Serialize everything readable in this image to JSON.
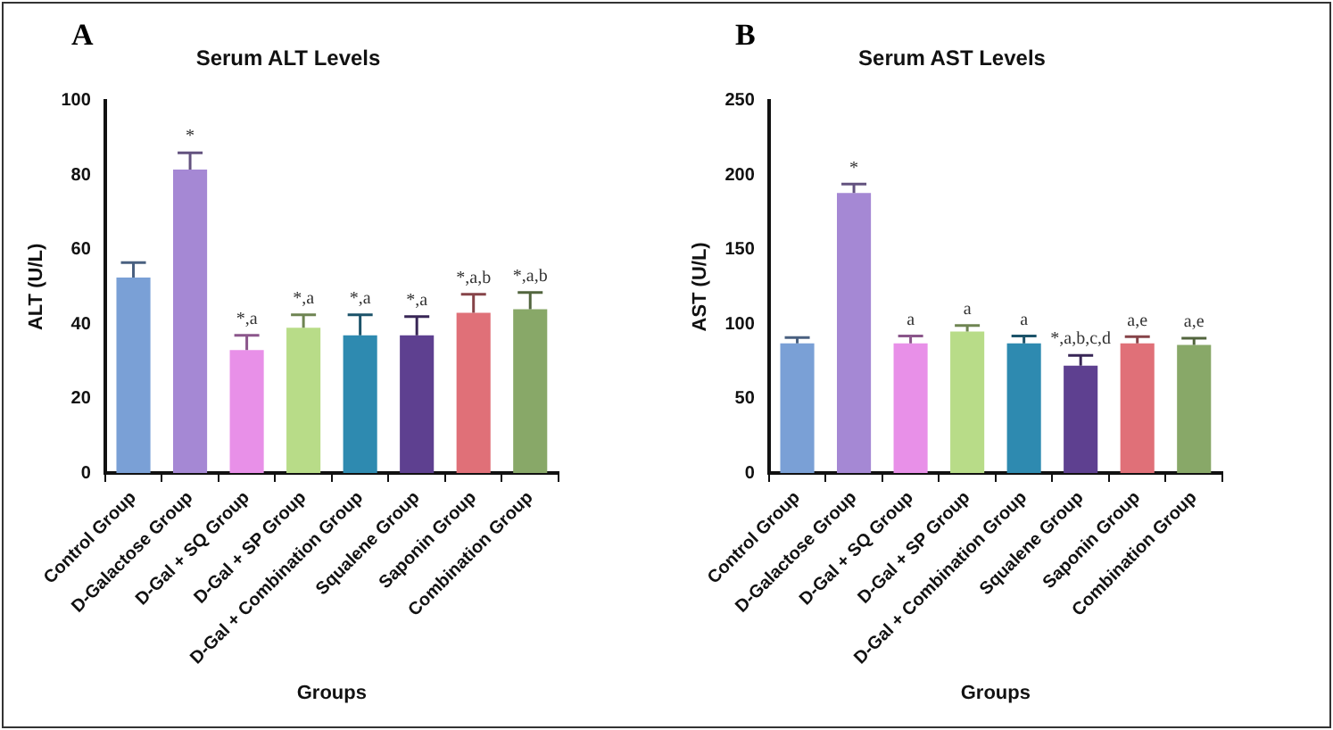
{
  "chart_data": [
    {
      "type": "bar",
      "title": "Serum ALT Levels",
      "xlabel": "Groups",
      "ylabel": "ALT (U/L)",
      "categories": [
        "Control Group",
        "D-Galactose Group",
        "D-Gal + SQ Group",
        "D-Gal + SP Group",
        "D-Gal + Combination Group",
        "Squalene Group",
        "Saponin Group",
        "Combination Group"
      ],
      "values": [
        52.5,
        81.5,
        33,
        39,
        37,
        37,
        43,
        44
      ],
      "errors": [
        [
          52.5,
          56.5
        ],
        [
          81.5,
          86
        ],
        [
          33,
          37
        ],
        [
          39,
          42.5
        ],
        [
          37,
          42.5
        ],
        [
          37,
          42
        ],
        [
          43,
          48
        ],
        [
          44,
          48.5
        ]
      ],
      "colors": [
        "#7aa0d6",
        "#a588d4",
        "#e890e8",
        "#b8dc88",
        "#2e8ab0",
        "#5e4090",
        "#e07078",
        "#88a868"
      ],
      "ylim": [
        0,
        100
      ],
      "yticks": [
        0,
        20,
        40,
        60,
        80,
        100
      ],
      "annotations": [
        "A",
        {
          "text": "*",
          "x": "D-Galactose Group",
          "y": 86
        },
        {
          "text": "*,a",
          "x": "D-Gal + SQ Group",
          "y": 37
        },
        {
          "text": "*,a",
          "x": "D-Gal + SP Group",
          "y": 42.5
        },
        {
          "text": "*,a",
          "x": "D-Gal + Combination Group",
          "y": 42.5
        },
        {
          "text": "*,a",
          "x": "Squalene Group",
          "y": 42
        },
        {
          "text": "*,a,b",
          "x": "Saponin Group",
          "y": 48
        },
        {
          "text": "*,a,b",
          "x": "Combination Group",
          "y": 48.5
        }
      ]
    },
    {
      "type": "bar",
      "title": "Serum AST Levels",
      "xlabel": "Groups",
      "ylabel": "AST (U/L)",
      "categories": [
        "Control Group",
        "D-Galactose Group",
        "D-Gal + SQ Group",
        "D-Gal + SP Group",
        "D-Gal + Combination Group",
        "Squalene Group",
        "Saponin Group",
        "Combination Group"
      ],
      "values": [
        87,
        188,
        87,
        95,
        87,
        72,
        87,
        86
      ],
      "errors": [
        [
          87,
          91
        ],
        [
          188,
          194
        ],
        [
          87,
          92
        ],
        [
          95,
          99
        ],
        [
          87,
          92
        ],
        [
          72,
          79
        ],
        [
          87,
          91.5
        ],
        [
          86,
          90.5
        ]
      ],
      "colors": [
        "#7aa0d6",
        "#a588d4",
        "#e890e8",
        "#b8dc88",
        "#2e8ab0",
        "#5e4090",
        "#e07078",
        "#88a868"
      ],
      "ylim": [
        0,
        250
      ],
      "yticks": [
        0,
        50,
        100,
        150,
        200,
        250
      ],
      "annotations": [
        "B",
        {
          "text": "*",
          "x": "D-Galactose Group",
          "y": 194
        },
        {
          "text": "a",
          "x": "D-Gal + SQ Group",
          "y": 92
        },
        {
          "text": "a",
          "x": "D-Gal + SP Group",
          "y": 99
        },
        {
          "text": "a",
          "x": "D-Gal + Combination Group",
          "y": 92
        },
        {
          "text": "*,a,b,c,d",
          "x": "Squalene Group",
          "y": 79
        },
        {
          "text": "a,e",
          "x": "Saponin Group",
          "y": 91.5
        },
        {
          "text": "a,e",
          "x": "Combination Group",
          "y": 90.5
        }
      ]
    }
  ]
}
